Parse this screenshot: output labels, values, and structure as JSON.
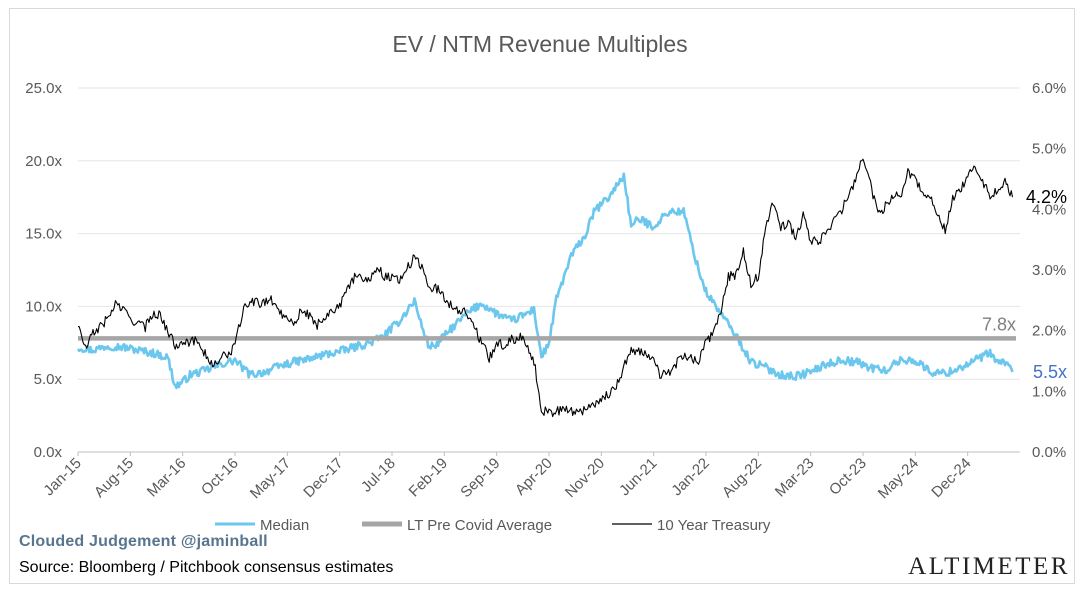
{
  "chart_data": {
    "type": "line",
    "title": "EV / NTM Revenue Multiples",
    "x_tick_labels": [
      "Jan-15",
      "Aug-15",
      "Mar-16",
      "Oct-16",
      "May-17",
      "Dec-17",
      "Jul-18",
      "Feb-19",
      "Sep-19",
      "Apr-20",
      "Nov-20",
      "Jun-21",
      "Jan-22",
      "Aug-22",
      "Mar-23",
      "Oct-23",
      "May-24",
      "Dec-24"
    ],
    "y_left": {
      "ticks": [
        "0.0x",
        "5.0x",
        "10.0x",
        "15.0x",
        "20.0x",
        "25.0x"
      ],
      "range": [
        0,
        25
      ]
    },
    "y_right": {
      "ticks": [
        "0.0%",
        "1.0%",
        "2.0%",
        "3.0%",
        "4.0%",
        "5.0%",
        "6.0%"
      ],
      "range": [
        0,
        6
      ]
    },
    "x_range": [
      "Jan-15",
      "Jul-25"
    ],
    "grid": true,
    "legend_position": "bottom",
    "series": [
      {
        "name": "Median",
        "axis": "left",
        "color": "#6cc7ee",
        "points": [
          [
            "Jan-15",
            7.2
          ],
          [
            "Mar-15",
            7.0
          ],
          [
            "May-15",
            7.3
          ],
          [
            "Jul-15",
            7.2
          ],
          [
            "Sep-15",
            7.0
          ],
          [
            "Nov-15",
            6.8
          ],
          [
            "Jan-16",
            6.5
          ],
          [
            "Feb-16",
            4.5
          ],
          [
            "Mar-16",
            4.8
          ],
          [
            "Apr-16",
            5.3
          ],
          [
            "Jun-16",
            5.6
          ],
          [
            "Aug-16",
            6.0
          ],
          [
            "Oct-16",
            6.3
          ],
          [
            "Dec-16",
            5.3
          ],
          [
            "Feb-17",
            5.5
          ],
          [
            "Apr-17",
            5.9
          ],
          [
            "Jun-17",
            6.2
          ],
          [
            "Aug-17",
            6.4
          ],
          [
            "Oct-17",
            6.7
          ],
          [
            "Dec-17",
            6.9
          ],
          [
            "Feb-18",
            7.2
          ],
          [
            "Apr-18",
            7.5
          ],
          [
            "Jun-18",
            8.0
          ],
          [
            "Aug-18",
            9.0
          ],
          [
            "Oct-18",
            10.4
          ],
          [
            "Nov-18",
            8.6
          ],
          [
            "Dec-18",
            7.2
          ],
          [
            "Jan-19",
            7.4
          ],
          [
            "Mar-19",
            8.5
          ],
          [
            "May-19",
            9.5
          ],
          [
            "Jul-19",
            10.2
          ],
          [
            "Sep-19",
            9.5
          ],
          [
            "Nov-19",
            9.0
          ],
          [
            "Jan-20",
            9.5
          ],
          [
            "Feb-20",
            9.8
          ],
          [
            "Mar-20",
            6.5
          ],
          [
            "Apr-20",
            7.5
          ],
          [
            "May-20",
            10.5
          ],
          [
            "Jul-20",
            13.5
          ],
          [
            "Sep-20",
            15.0
          ],
          [
            "Oct-20",
            16.5
          ],
          [
            "Dec-20",
            17.5
          ],
          [
            "Feb-21",
            19.0
          ],
          [
            "Mar-21",
            15.5
          ],
          [
            "Apr-21",
            16.0
          ],
          [
            "Jun-21",
            15.5
          ],
          [
            "Aug-21",
            16.5
          ],
          [
            "Oct-21",
            16.5
          ],
          [
            "Dec-21",
            12.5
          ],
          [
            "Jan-22",
            11.0
          ],
          [
            "Mar-22",
            9.5
          ],
          [
            "May-22",
            8.0
          ],
          [
            "Jul-22",
            6.2
          ],
          [
            "Sep-22",
            5.8
          ],
          [
            "Nov-22",
            5.3
          ],
          [
            "Jan-23",
            5.2
          ],
          [
            "Mar-23",
            5.5
          ],
          [
            "May-23",
            6.0
          ],
          [
            "Jul-23",
            6.3
          ],
          [
            "Sep-23",
            6.2
          ],
          [
            "Nov-23",
            5.8
          ],
          [
            "Jan-24",
            5.6
          ],
          [
            "Mar-24",
            6.3
          ],
          [
            "May-24",
            6.3
          ],
          [
            "Jul-24",
            5.5
          ],
          [
            "Sep-24",
            5.4
          ],
          [
            "Nov-24",
            5.8
          ],
          [
            "Jan-25",
            6.3
          ],
          [
            "Mar-25",
            6.8
          ],
          [
            "Apr-25",
            6.1
          ],
          [
            "May-25",
            6.2
          ],
          [
            "Jun-25",
            5.5
          ]
        ]
      },
      {
        "name": "LT Pre Covid Average",
        "axis": "left",
        "color": "#a6a6a6",
        "value": 7.8
      },
      {
        "name": "10 Year Treasury",
        "axis": "right",
        "color": "#000000",
        "points": [
          [
            "Jan-15",
            2.1
          ],
          [
            "Feb-15",
            1.7
          ],
          [
            "Mar-15",
            1.95
          ],
          [
            "May-15",
            2.2
          ],
          [
            "Jun-15",
            2.45
          ],
          [
            "Jul-15",
            2.35
          ],
          [
            "Aug-15",
            2.2
          ],
          [
            "Oct-15",
            2.05
          ],
          [
            "Nov-15",
            2.3
          ],
          [
            "Dec-15",
            2.25
          ],
          [
            "Jan-16",
            2.0
          ],
          [
            "Feb-16",
            1.75
          ],
          [
            "Mar-16",
            1.85
          ],
          [
            "Apr-16",
            1.8
          ],
          [
            "May-16",
            1.85
          ],
          [
            "Jul-16",
            1.4
          ],
          [
            "Aug-16",
            1.55
          ],
          [
            "Sep-16",
            1.6
          ],
          [
            "Oct-16",
            1.75
          ],
          [
            "Nov-16",
            2.3
          ],
          [
            "Dec-16",
            2.5
          ],
          [
            "Jan-17",
            2.45
          ],
          [
            "Mar-17",
            2.5
          ],
          [
            "Apr-17",
            2.3
          ],
          [
            "Jun-17",
            2.15
          ],
          [
            "Jul-17",
            2.35
          ],
          [
            "Sep-17",
            2.1
          ],
          [
            "Nov-17",
            2.35
          ],
          [
            "Dec-17",
            2.4
          ],
          [
            "Jan-18",
            2.65
          ],
          [
            "Feb-18",
            2.9
          ],
          [
            "Apr-18",
            2.85
          ],
          [
            "May-18",
            3.05
          ],
          [
            "Jun-18",
            2.9
          ],
          [
            "Aug-18",
            2.85
          ],
          [
            "Oct-18",
            3.2
          ],
          [
            "Nov-18",
            3.05
          ],
          [
            "Dec-18",
            2.7
          ],
          [
            "Jan-19",
            2.7
          ],
          [
            "Mar-19",
            2.4
          ],
          [
            "May-19",
            2.3
          ],
          [
            "Jun-19",
            2.05
          ],
          [
            "Aug-19",
            1.55
          ],
          [
            "Sep-19",
            1.8
          ],
          [
            "Oct-19",
            1.75
          ],
          [
            "Nov-19",
            1.85
          ],
          [
            "Dec-19",
            1.9
          ],
          [
            "Jan-20",
            1.8
          ],
          [
            "Feb-20",
            1.5
          ],
          [
            "Mar-20",
            0.7
          ],
          [
            "Apr-20",
            0.65
          ],
          [
            "Jun-20",
            0.7
          ],
          [
            "Aug-20",
            0.65
          ],
          [
            "Oct-20",
            0.8
          ],
          [
            "Dec-20",
            0.95
          ],
          [
            "Jan-21",
            1.1
          ],
          [
            "Feb-21",
            1.4
          ],
          [
            "Mar-21",
            1.7
          ],
          [
            "Apr-21",
            1.65
          ],
          [
            "May-21",
            1.6
          ],
          [
            "Jun-21",
            1.5
          ],
          [
            "Jul-21",
            1.25
          ],
          [
            "Aug-21",
            1.3
          ],
          [
            "Sep-21",
            1.45
          ],
          [
            "Oct-21",
            1.6
          ],
          [
            "Nov-21",
            1.55
          ],
          [
            "Dec-21",
            1.5
          ],
          [
            "Jan-22",
            1.8
          ],
          [
            "Feb-22",
            1.95
          ],
          [
            "Mar-22",
            2.35
          ],
          [
            "Apr-22",
            2.9
          ],
          [
            "May-22",
            2.9
          ],
          [
            "Jun-22",
            3.3
          ],
          [
            "Jul-22",
            2.75
          ],
          [
            "Aug-22",
            2.9
          ],
          [
            "Sep-22",
            3.7
          ],
          [
            "Oct-22",
            4.1
          ],
          [
            "Nov-22",
            3.7
          ],
          [
            "Dec-22",
            3.8
          ],
          [
            "Jan-23",
            3.5
          ],
          [
            "Feb-23",
            3.9
          ],
          [
            "Mar-23",
            3.5
          ],
          [
            "Apr-23",
            3.45
          ],
          [
            "May-23",
            3.6
          ],
          [
            "Jun-23",
            3.8
          ],
          [
            "Jul-23",
            3.95
          ],
          [
            "Aug-23",
            4.2
          ],
          [
            "Sep-23",
            4.5
          ],
          [
            "Oct-23",
            4.9
          ],
          [
            "Nov-23",
            4.4
          ],
          [
            "Dec-23",
            3.9
          ],
          [
            "Jan-24",
            4.05
          ],
          [
            "Feb-24",
            4.25
          ],
          [
            "Mar-24",
            4.2
          ],
          [
            "Apr-24",
            4.6
          ],
          [
            "May-24",
            4.5
          ],
          [
            "Jun-24",
            4.3
          ],
          [
            "Jul-24",
            4.2
          ],
          [
            "Aug-24",
            3.9
          ],
          [
            "Sep-24",
            3.65
          ],
          [
            "Oct-24",
            4.2
          ],
          [
            "Nov-24",
            4.35
          ],
          [
            "Dec-24",
            4.5
          ],
          [
            "Jan-25",
            4.75
          ],
          [
            "Feb-25",
            4.45
          ],
          [
            "Mar-25",
            4.25
          ],
          [
            "Apr-25",
            4.3
          ],
          [
            "May-25",
            4.45
          ],
          [
            "Jun-25",
            4.2
          ]
        ]
      }
    ],
    "annotations": [
      {
        "text": "7.8x",
        "series": "LT Pre Covid Average",
        "color": "#7f7f7f"
      },
      {
        "text": "5.5x",
        "series": "Median",
        "color": "#4472c4"
      },
      {
        "text": "4.2%",
        "series": "10 Year Treasury",
        "color": "#000000"
      }
    ]
  },
  "footer": {
    "brand": "Clouded Judgement @jaminball",
    "source": "Source: Bloomberg / Pitchbook consensus estimates",
    "logo": "ALTIMETER"
  }
}
